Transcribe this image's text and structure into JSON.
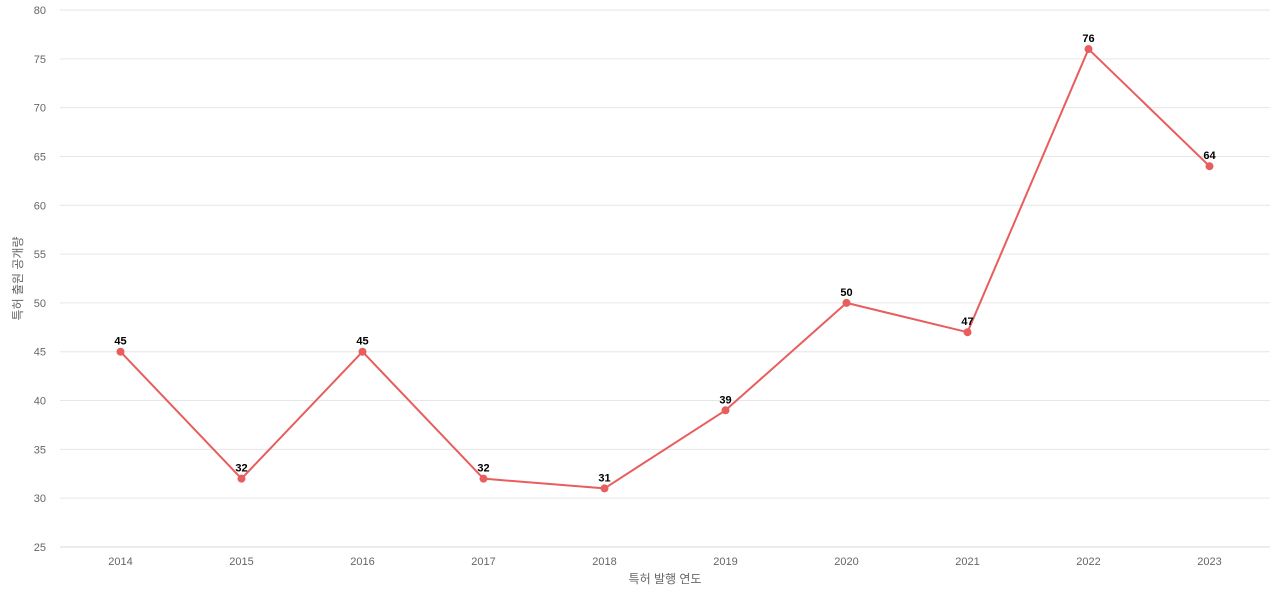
{
  "chart_data": {
    "type": "line",
    "title": "",
    "xlabel": "특허 발행 연도",
    "ylabel": "특허 출원 공개량",
    "categories": [
      "2014",
      "2015",
      "2016",
      "2017",
      "2018",
      "2019",
      "2020",
      "2021",
      "2022",
      "2023"
    ],
    "series": [
      {
        "values": [
          45,
          32,
          45,
          32,
          31,
          39,
          50,
          47,
          76,
          64
        ],
        "color": "#e85d5d"
      }
    ],
    "ylim": [
      25,
      80
    ],
    "yticks": [
      25,
      30,
      35,
      40,
      45,
      50,
      55,
      60,
      65,
      70,
      75,
      80
    ],
    "grid": true,
    "legend": "none"
  }
}
